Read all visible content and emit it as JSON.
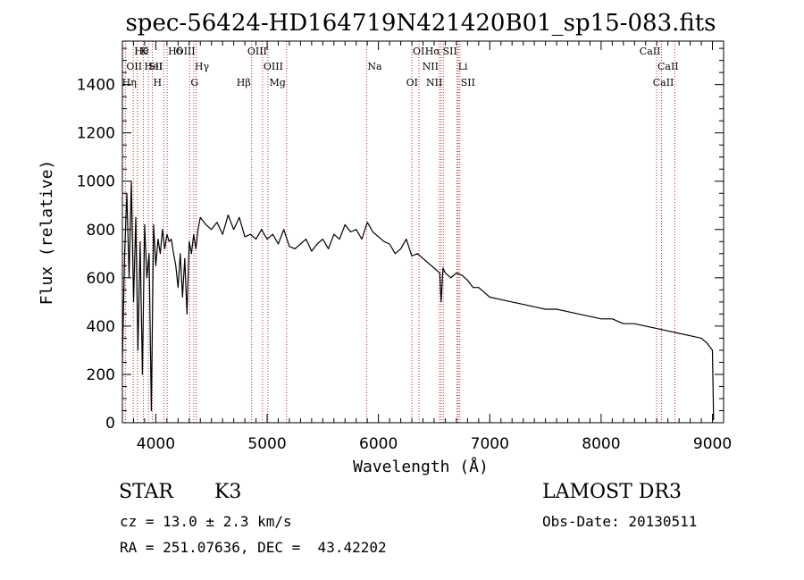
{
  "chart_data": {
    "type": "line",
    "title": "spec-56424-HD164719N421420B01_sp15-083.fits",
    "xlabel": "Wavelength (Å)",
    "ylabel": "Flux (relative)",
    "xlim": [
      3700,
      9100
    ],
    "ylim": [
      0,
      1580
    ],
    "xticks": [
      4000,
      5000,
      6000,
      7000,
      8000,
      9000
    ],
    "yticks": [
      0,
      200,
      400,
      600,
      800,
      1000,
      1200,
      1400
    ],
    "grid": false,
    "line_color": "#000000",
    "marker_color": "#b03030",
    "series": [
      {
        "name": "flux",
        "x": [
          3700,
          3720,
          3740,
          3760,
          3780,
          3800,
          3820,
          3840,
          3860,
          3880,
          3900,
          3920,
          3940,
          3960,
          3980,
          4000,
          4020,
          4040,
          4060,
          4080,
          4100,
          4120,
          4140,
          4160,
          4180,
          4200,
          4220,
          4240,
          4260,
          4280,
          4300,
          4320,
          4340,
          4360,
          4380,
          4400,
          4450,
          4500,
          4550,
          4600,
          4650,
          4700,
          4750,
          4800,
          4850,
          4900,
          4950,
          5000,
          5050,
          5100,
          5150,
          5200,
          5250,
          5300,
          5350,
          5400,
          5450,
          5500,
          5550,
          5600,
          5650,
          5700,
          5750,
          5800,
          5850,
          5900,
          5950,
          6000,
          6050,
          6100,
          6150,
          6200,
          6250,
          6300,
          6350,
          6400,
          6450,
          6500,
          6550,
          6563,
          6580,
          6600,
          6650,
          6700,
          6750,
          6800,
          6850,
          6900,
          6950,
          7000,
          7100,
          7200,
          7300,
          7400,
          7500,
          7600,
          7700,
          7800,
          7900,
          8000,
          8100,
          8200,
          8300,
          8400,
          8500,
          8600,
          8700,
          8800,
          8900,
          8950,
          9000,
          9010
        ],
        "values": [
          250,
          700,
          950,
          600,
          1000,
          500,
          850,
          300,
          750,
          200,
          820,
          600,
          700,
          50,
          820,
          650,
          760,
          700,
          800,
          720,
          780,
          750,
          760,
          700,
          650,
          560,
          700,
          520,
          680,
          450,
          750,
          700,
          780,
          720,
          800,
          850,
          820,
          800,
          830,
          780,
          860,
          800,
          850,
          770,
          780,
          760,
          800,
          760,
          780,
          740,
          800,
          730,
          720,
          740,
          760,
          710,
          740,
          760,
          720,
          780,
          760,
          820,
          790,
          800,
          760,
          830,
          790,
          770,
          750,
          740,
          700,
          720,
          760,
          690,
          700,
          680,
          660,
          640,
          620,
          500,
          640,
          620,
          600,
          620,
          610,
          590,
          560,
          560,
          540,
          520,
          510,
          500,
          490,
          480,
          470,
          470,
          460,
          450,
          440,
          430,
          430,
          410,
          410,
          400,
          390,
          380,
          370,
          360,
          350,
          330,
          300,
          10
        ]
      }
    ],
    "lines": [
      {
        "name": "OII",
        "wavelength": 3727,
        "row": 2,
        "side": "right"
      },
      {
        "name": "Hθ",
        "wavelength": 3798,
        "row": 1,
        "side": "right"
      },
      {
        "name": "Hη",
        "wavelength": 3835,
        "row": 3,
        "side": "left"
      },
      {
        "name": "HeI",
        "wavelength": 3889,
        "row": 2,
        "side": "right"
      },
      {
        "name": "K",
        "wavelength": 3934,
        "row": 1,
        "side": "left"
      },
      {
        "name": "H",
        "wavelength": 3969,
        "row": 3,
        "side": "right"
      },
      {
        "name": "SII",
        "wavelength": 4072,
        "row": 2,
        "side": "left"
      },
      {
        "name": "Hδ",
        "wavelength": 4102,
        "row": 1,
        "side": "right"
      },
      {
        "name": "G",
        "wavelength": 4305,
        "row": 3,
        "side": "right"
      },
      {
        "name": "Hγ",
        "wavelength": 4341,
        "row": 2,
        "side": "right"
      },
      {
        "name": "OIII",
        "wavelength": 4363,
        "row": 1,
        "side": "left"
      },
      {
        "name": "Hβ",
        "wavelength": 4861,
        "row": 3,
        "side": "left"
      },
      {
        "name": "OIII",
        "wavelength": 4959,
        "row": 2,
        "side": "right"
      },
      {
        "name": "OIII",
        "wavelength": 5007,
        "row": 1,
        "side": "left"
      },
      {
        "name": "Mg",
        "wavelength": 5175,
        "row": 3,
        "side": "left"
      },
      {
        "name": "Na",
        "wavelength": 5894,
        "row": 2,
        "side": "right"
      },
      {
        "name": "OI",
        "wavelength": 6300,
        "row": 1,
        "side": "right"
      },
      {
        "name": "OI",
        "wavelength": 6364,
        "row": 3,
        "side": "left"
      },
      {
        "name": "NII",
        "wavelength": 6548,
        "row": 2,
        "side": "left"
      },
      {
        "name": "Hα",
        "wavelength": 6563,
        "row": 1,
        "side": "left"
      },
      {
        "name": "NII",
        "wavelength": 6583,
        "row": 3,
        "side": "left"
      },
      {
        "name": "Li",
        "wavelength": 6707,
        "row": 2,
        "side": "right"
      },
      {
        "name": "SII",
        "wavelength": 6716,
        "row": 1,
        "side": "left"
      },
      {
        "name": "SII",
        "wavelength": 6731,
        "row": 3,
        "side": "right"
      },
      {
        "name": "CaII",
        "wavelength": 8498,
        "row": 2,
        "side": "right"
      },
      {
        "name": "CaII",
        "wavelength": 8542,
        "row": 1,
        "side": "left"
      },
      {
        "name": "CaII",
        "wavelength": 8662,
        "row": 3,
        "side": "left"
      }
    ]
  },
  "info": {
    "class_label": "STAR",
    "subclass": "K3",
    "survey": "LAMOST DR3",
    "redshift": "cz = 13.0 ± 2.3 km/s",
    "obs_date": "Obs-Date: 20130511",
    "coords": "RA = 251.07636, DEC =  43.42202"
  }
}
